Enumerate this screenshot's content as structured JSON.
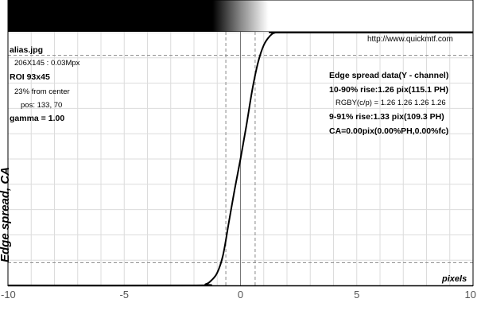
{
  "chart_data": {
    "type": "line",
    "ylabel": "Edge spread, CA",
    "xlabel": "pixels",
    "xlim": [
      -10,
      10
    ],
    "ylim": [
      0,
      1
    ],
    "x_ticks": [
      "-10",
      "-5",
      "0",
      "5",
      "10"
    ],
    "x_tick_values": [
      -10,
      -5,
      0,
      5,
      10
    ],
    "grid": true,
    "source_url": "http://www.quickmtf.com",
    "info_left": {
      "file": "alias.jpg",
      "size": "206X145 : 0.03Mpx",
      "roi": "ROI 93x45",
      "from_center": "23% from center",
      "pos": "pos: 133, 70",
      "gamma": "gamma = 1.00"
    },
    "info_right": {
      "heading": "Edge spread data(Y - channel)",
      "rise_10_90": "10-90% rise:1.26 pix(115.1 PH)",
      "rgby": "RGBY(c/p) = 1.26 1.26 1.26 1.26",
      "rise_9_91": "9-91% rise:1.33 pix(109.3 PH)",
      "ca": "CA=0.00pix(0.00%PH,0.00%fc)"
    },
    "markers_x": [
      -0.63,
      0,
      0.63
    ],
    "marker_levels": [
      0.09,
      0.91
    ],
    "series": [
      {
        "x": [
          -10,
          -2,
          -1.5,
          -1.25,
          -1,
          -0.75,
          -0.5,
          -0.25,
          0,
          0.25,
          0.5,
          0.75,
          1,
          1.25,
          1.5,
          2,
          10
        ],
        "y": [
          0,
          0,
          0.005,
          0.02,
          0.05,
          0.12,
          0.25,
          0.38,
          0.5,
          0.63,
          0.77,
          0.88,
          0.95,
          0.985,
          1.0,
          1.0,
          1.0
        ]
      }
    ]
  }
}
